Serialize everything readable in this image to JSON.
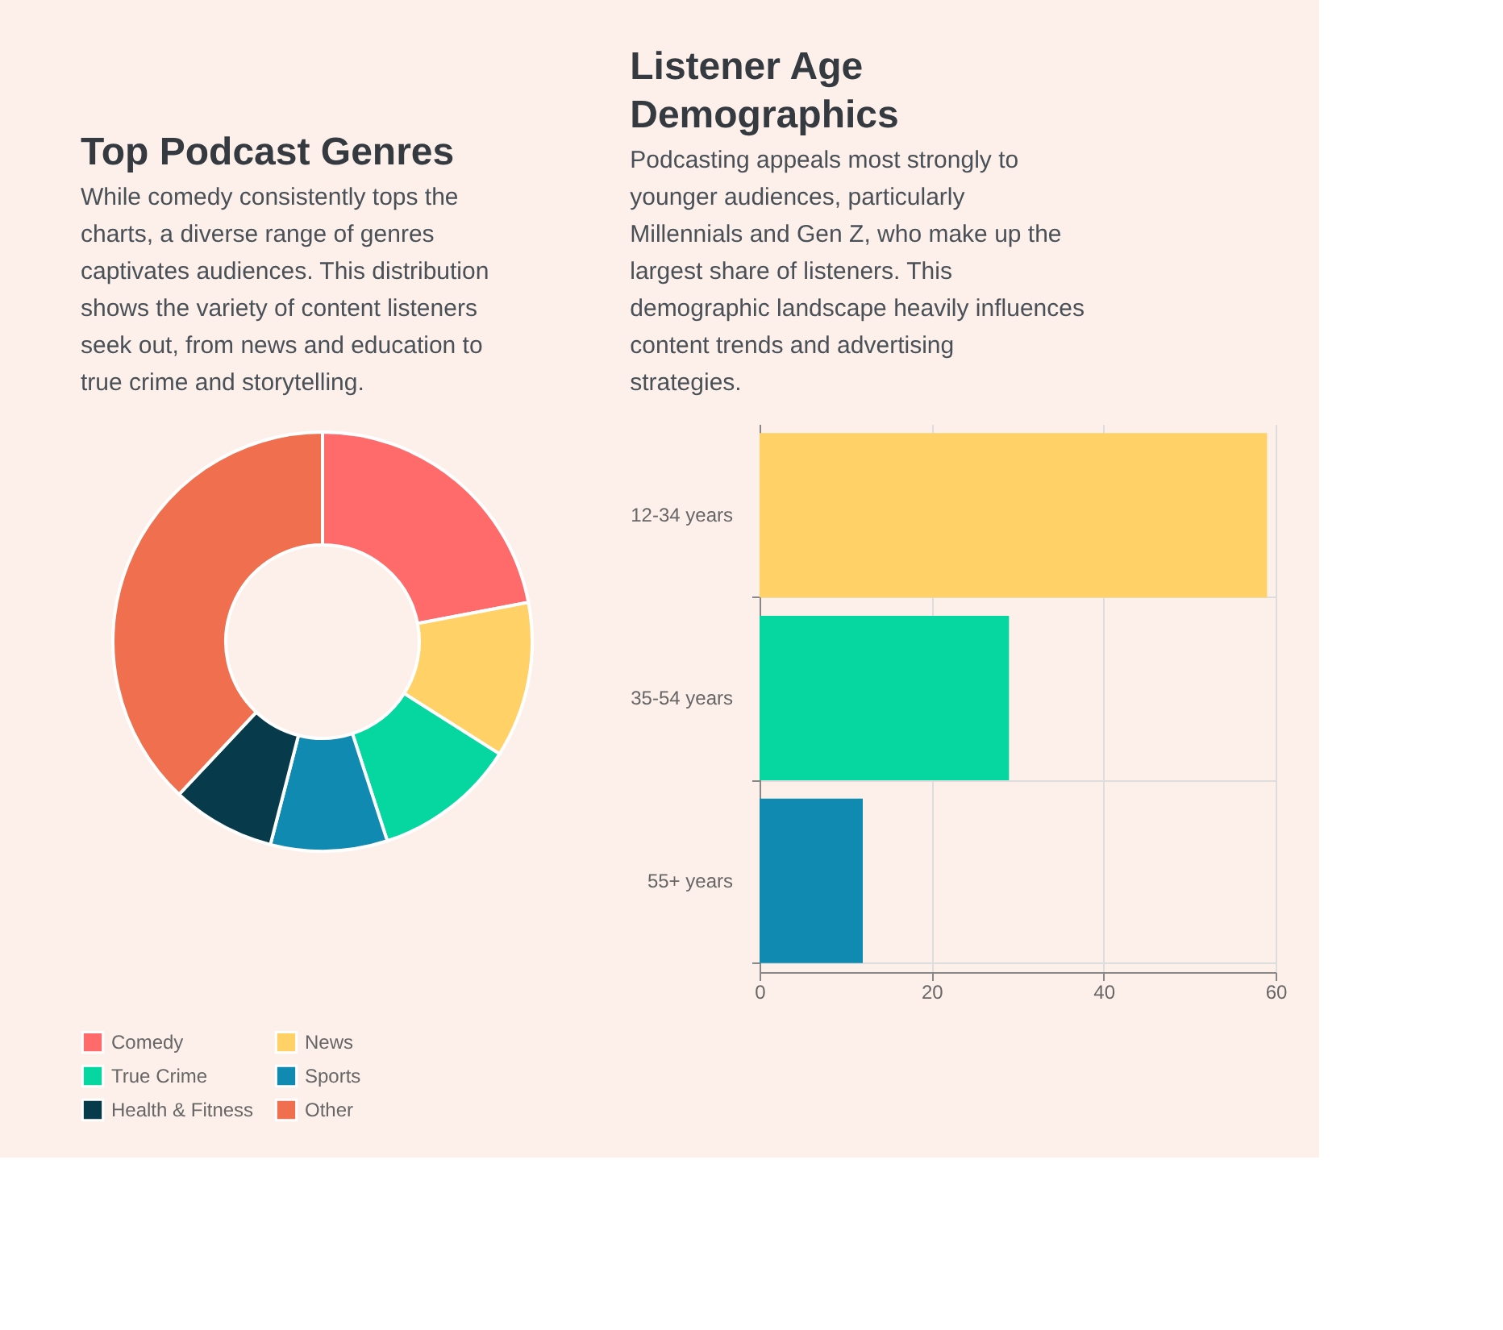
{
  "chart_data": [
    {
      "type": "donut",
      "title": "Top Podcast Genres",
      "subtitle": "While comedy consistently tops the charts, a diverse range of genres captivates audiences. This distribution shows the variety of content listeners seek out, from news and education to true crime and storytelling.",
      "categories": [
        "Comedy",
        "News",
        "True Crime",
        "Sports",
        "Health & Fitness",
        "Other"
      ],
      "values": [
        22,
        12,
        11,
        9,
        8,
        38
      ],
      "colors": [
        "#ff6b6b",
        "#ffd166",
        "#06d6a0",
        "#118ab2",
        "#073b4c",
        "#ef6f4f"
      ],
      "legend": "bottom"
    },
    {
      "type": "bar",
      "orientation": "horizontal",
      "title": "Listener Age Demographics",
      "subtitle": "Podcasting appeals most strongly to younger audiences, particularly Millennials and Gen Z, who make up the largest share of listeners. This demographic landscape heavily influences content trends and advertising strategies.",
      "categories": [
        "12-34 years",
        "35-54 years",
        "55+ years"
      ],
      "values": [
        59,
        29,
        12
      ],
      "colors": [
        "#ffd166",
        "#06d6a0",
        "#118ab2"
      ],
      "xlim": [
        0,
        60
      ],
      "xticks": [
        0,
        20,
        40,
        60
      ],
      "grid": true,
      "legend": false
    }
  ]
}
